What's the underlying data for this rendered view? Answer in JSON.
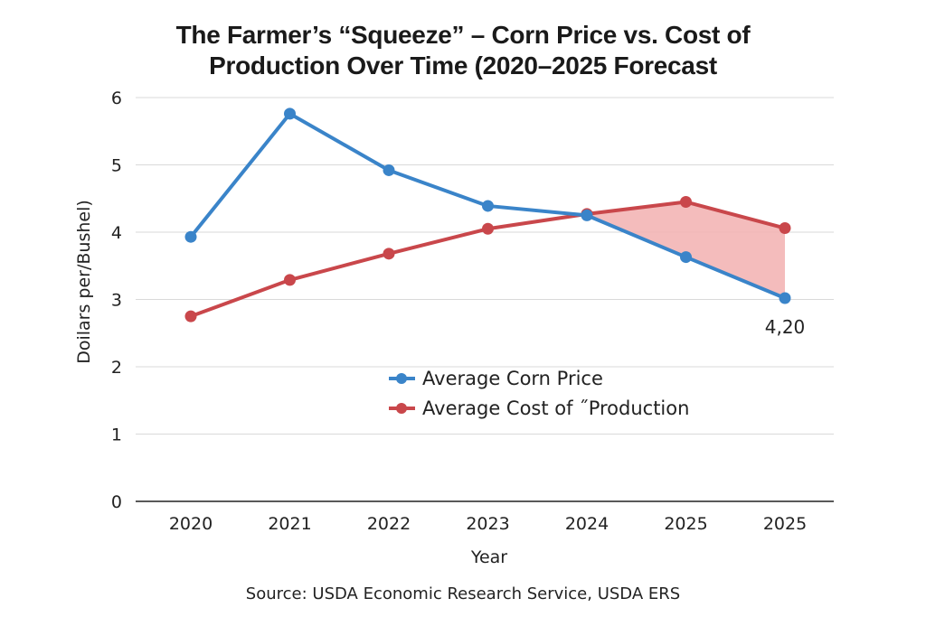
{
  "chart_data": {
    "type": "line",
    "title_lines": [
      "The Farmer’s “Squeeze” – Corn Price vs. Cost of",
      "Production Over Time (2020–2025 Forecast"
    ],
    "categories": [
      "2020",
      "2021",
      "2022",
      "2023",
      "2024",
      "2025",
      "2025"
    ],
    "series": [
      {
        "name": "Average Corn Price",
        "color": "#3a84c9",
        "values": [
          3.93,
          5.76,
          4.92,
          4.39,
          4.25,
          3.63,
          3.02
        ]
      },
      {
        "name": "Average Cost of ˝Production",
        "color": "#c9474b",
        "values": [
          2.75,
          3.29,
          3.68,
          4.05,
          4.27,
          4.45,
          4.06
        ]
      }
    ],
    "shaded_region": {
      "from_index": 4,
      "to_index": 6,
      "color": "#f2b0b0"
    },
    "ylim": [
      0,
      6
    ],
    "yticks": [
      "0",
      "1",
      "2",
      "3",
      "4",
      "5",
      "6"
    ],
    "xlabel": "Year",
    "ylabel": "Doilars per/Bushel)",
    "annotation": {
      "text": "4,20",
      "index": 6
    },
    "source": "Source: USDA Economic Research Service, USDA ERS",
    "grid": true,
    "legend": "center"
  }
}
